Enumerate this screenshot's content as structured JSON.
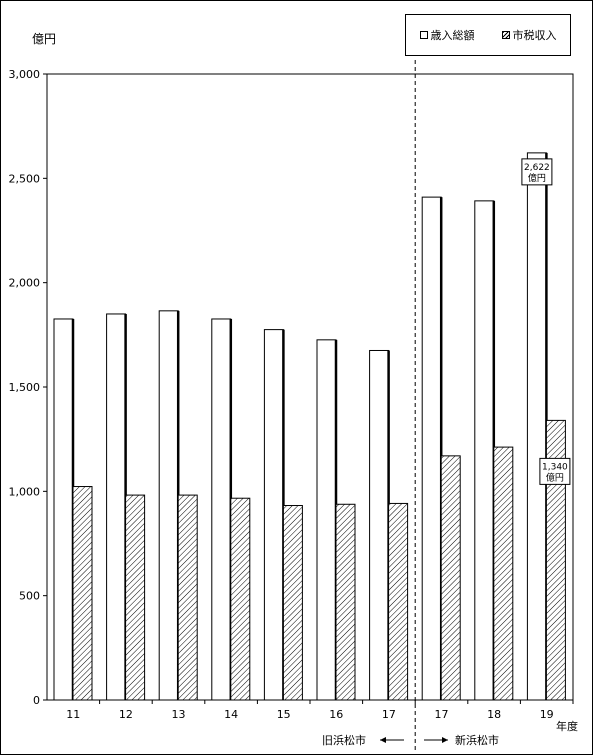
{
  "unit": "億円",
  "legend": {
    "total": "歳入総額",
    "tax": "市税収入"
  },
  "xaxis_suffix": "年度",
  "era_labels": {
    "old": "旧浜松市",
    "new": "新浜松市"
  },
  "colors": {
    "border": "#000000",
    "fill": "#ffffff"
  },
  "chart_data": {
    "type": "bar",
    "title": "",
    "xlabel": "年度",
    "ylabel": "億円",
    "ylim": [
      0,
      3000
    ],
    "yticks": [
      "0",
      "500",
      "1,000",
      "1,500",
      "2,000",
      "2,500",
      "3,000"
    ],
    "ytick_values": [
      0,
      500,
      1000,
      1500,
      2000,
      2500,
      3000
    ],
    "categories": [
      "11",
      "12",
      "13",
      "14",
      "15",
      "16",
      "17",
      "17",
      "18",
      "19"
    ],
    "series": [
      {
        "name": "歳入総額",
        "values": [
          1826,
          1850,
          1865,
          1826,
          1775,
          1726,
          1675,
          2410,
          2392,
          2622
        ]
      },
      {
        "name": "市税収入",
        "values": [
          1023,
          982,
          982,
          967,
          932,
          938,
          942,
          1170,
          1212,
          1340
        ]
      }
    ],
    "annotations": [
      {
        "series": 0,
        "index": 9,
        "line1": "2,622",
        "line2": "億円"
      },
      {
        "series": 1,
        "index": 9,
        "line1": "1,340",
        "line2": "億円"
      }
    ],
    "divider_after_index": 6,
    "grid": false,
    "legend_position": "top-right"
  }
}
